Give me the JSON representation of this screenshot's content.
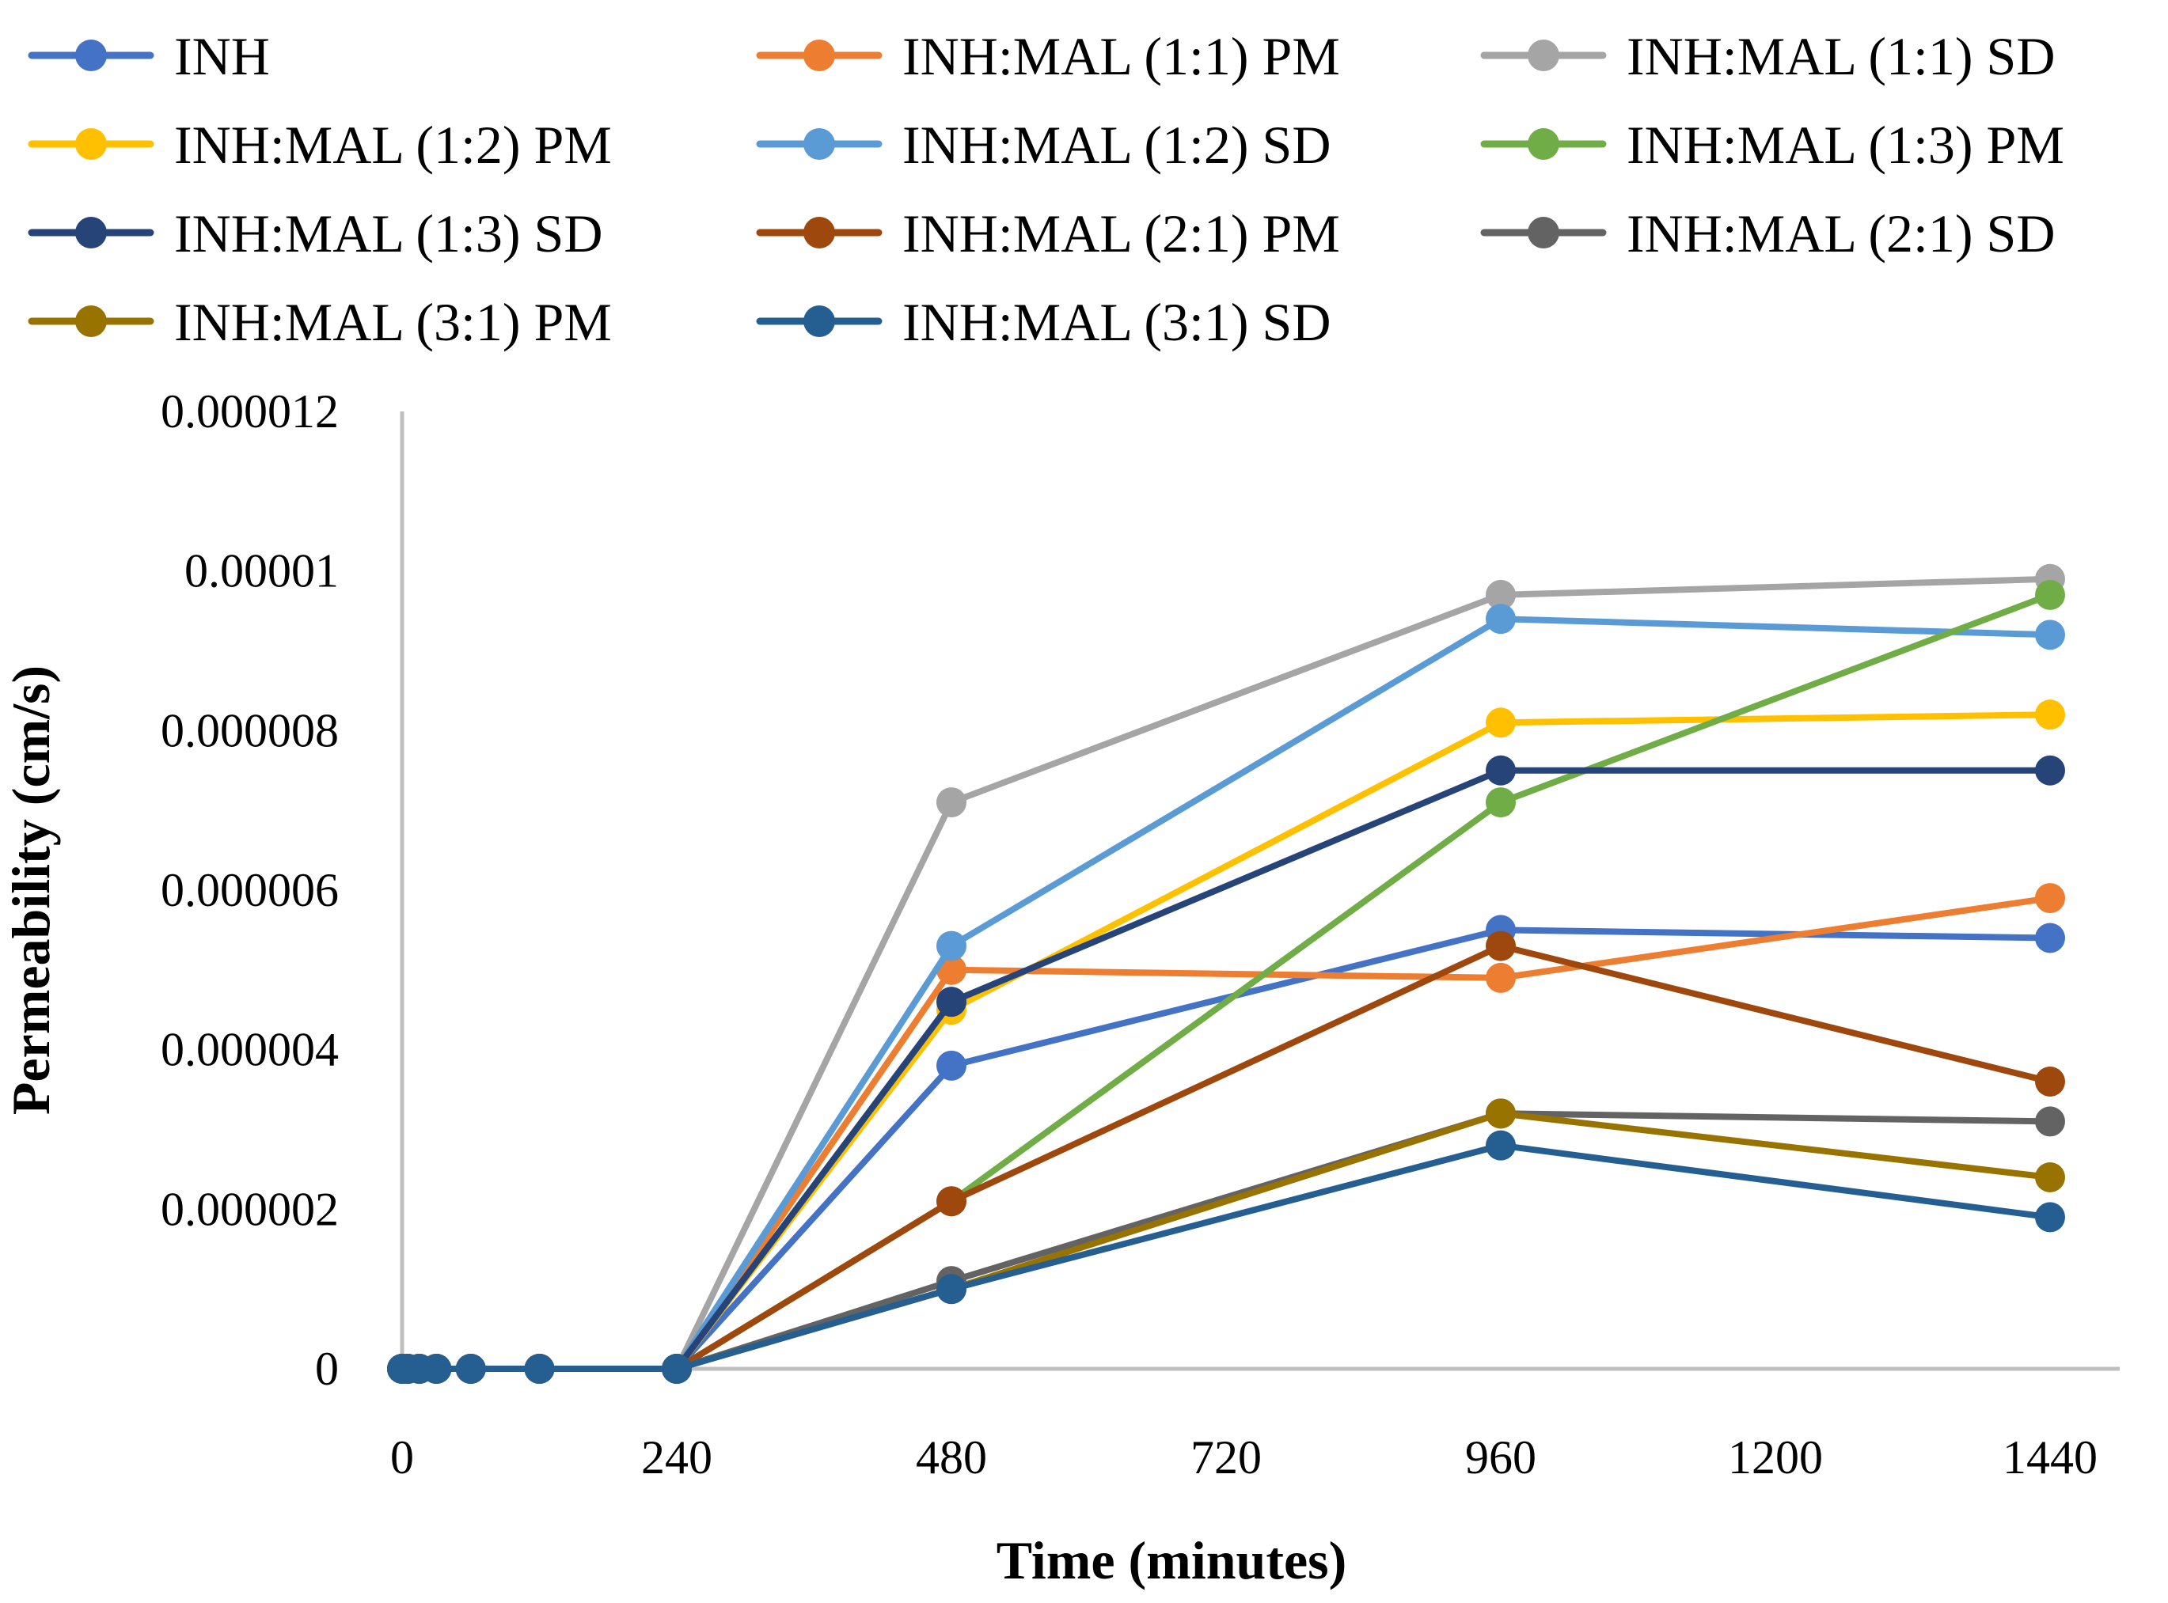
{
  "chart_data": {
    "type": "line",
    "title": "",
    "xlabel": "Time (minutes)",
    "ylabel": "Permeability (cm/s)",
    "xlim": [
      0,
      1440
    ],
    "ylim": [
      0,
      1.2e-05
    ],
    "x_ticks": [
      "0",
      "240",
      "480",
      "720",
      "960",
      "1200",
      "1440"
    ],
    "y_ticks": [
      "0",
      "0.000002",
      "0.000004",
      "0.000006",
      "0.000008",
      "0.00001",
      "0.000012"
    ],
    "grid": false,
    "legend_position": "top",
    "x": [
      0,
      5,
      15,
      30,
      60,
      120,
      240,
      480,
      960,
      1440
    ],
    "series": [
      {
        "name": "INH",
        "color": "#4472C4",
        "values": [
          0,
          0,
          0,
          0,
          0,
          0,
          0,
          3.8e-06,
          5.5e-06,
          5.4e-06
        ]
      },
      {
        "name": "INH:MAL (1:1) PM",
        "color": "#ED7D31",
        "values": [
          0,
          0,
          0,
          0,
          0,
          0,
          0,
          5e-06,
          4.9e-06,
          5.9e-06
        ]
      },
      {
        "name": "INH:MAL (1:1) SD",
        "color": "#A5A5A5",
        "values": [
          0,
          0,
          0,
          0,
          0,
          0,
          0,
          7.1e-06,
          9.7e-06,
          9.9e-06
        ]
      },
      {
        "name": "INH:MAL (1:2) PM",
        "color": "#FFC000",
        "values": [
          0,
          0,
          0,
          0,
          0,
          0,
          0,
          4.5e-06,
          8.1e-06,
          8.2e-06
        ]
      },
      {
        "name": "INH:MAL (1:2) SD",
        "color": "#5B9BD5",
        "values": [
          0,
          0,
          0,
          0,
          0,
          0,
          0,
          5.3e-06,
          9.4e-06,
          9.2e-06
        ]
      },
      {
        "name": "INH:MAL (1:3) PM",
        "color": "#70AD47",
        "values": [
          0,
          0,
          0,
          0,
          0,
          0,
          0,
          2.1e-06,
          7.1e-06,
          9.7e-06
        ]
      },
      {
        "name": "INH:MAL (1:3) SD",
        "color": "#264478",
        "values": [
          0,
          0,
          0,
          0,
          0,
          0,
          0,
          4.6e-06,
          7.5e-06,
          7.5e-06
        ]
      },
      {
        "name": "INH:MAL (2:1) PM",
        "color": "#9E480E",
        "values": [
          0,
          0,
          0,
          0,
          0,
          0,
          0,
          2.1e-06,
          5.3e-06,
          3.6e-06
        ]
      },
      {
        "name": "INH:MAL (2:1) SD",
        "color": "#636363",
        "values": [
          0,
          0,
          0,
          0,
          0,
          0,
          0,
          1.1e-06,
          3.2e-06,
          3.1e-06
        ]
      },
      {
        "name": "INH:MAL (3:1) PM",
        "color": "#997300",
        "values": [
          0,
          0,
          0,
          0,
          0,
          0,
          0,
          1e-06,
          3.2e-06,
          2.4e-06
        ]
      },
      {
        "name": "INH:MAL (3:1) SD",
        "color": "#255E91",
        "values": [
          0,
          0,
          0,
          0,
          0,
          0,
          0,
          1e-06,
          2.8e-06,
          1.9e-06
        ]
      }
    ]
  }
}
